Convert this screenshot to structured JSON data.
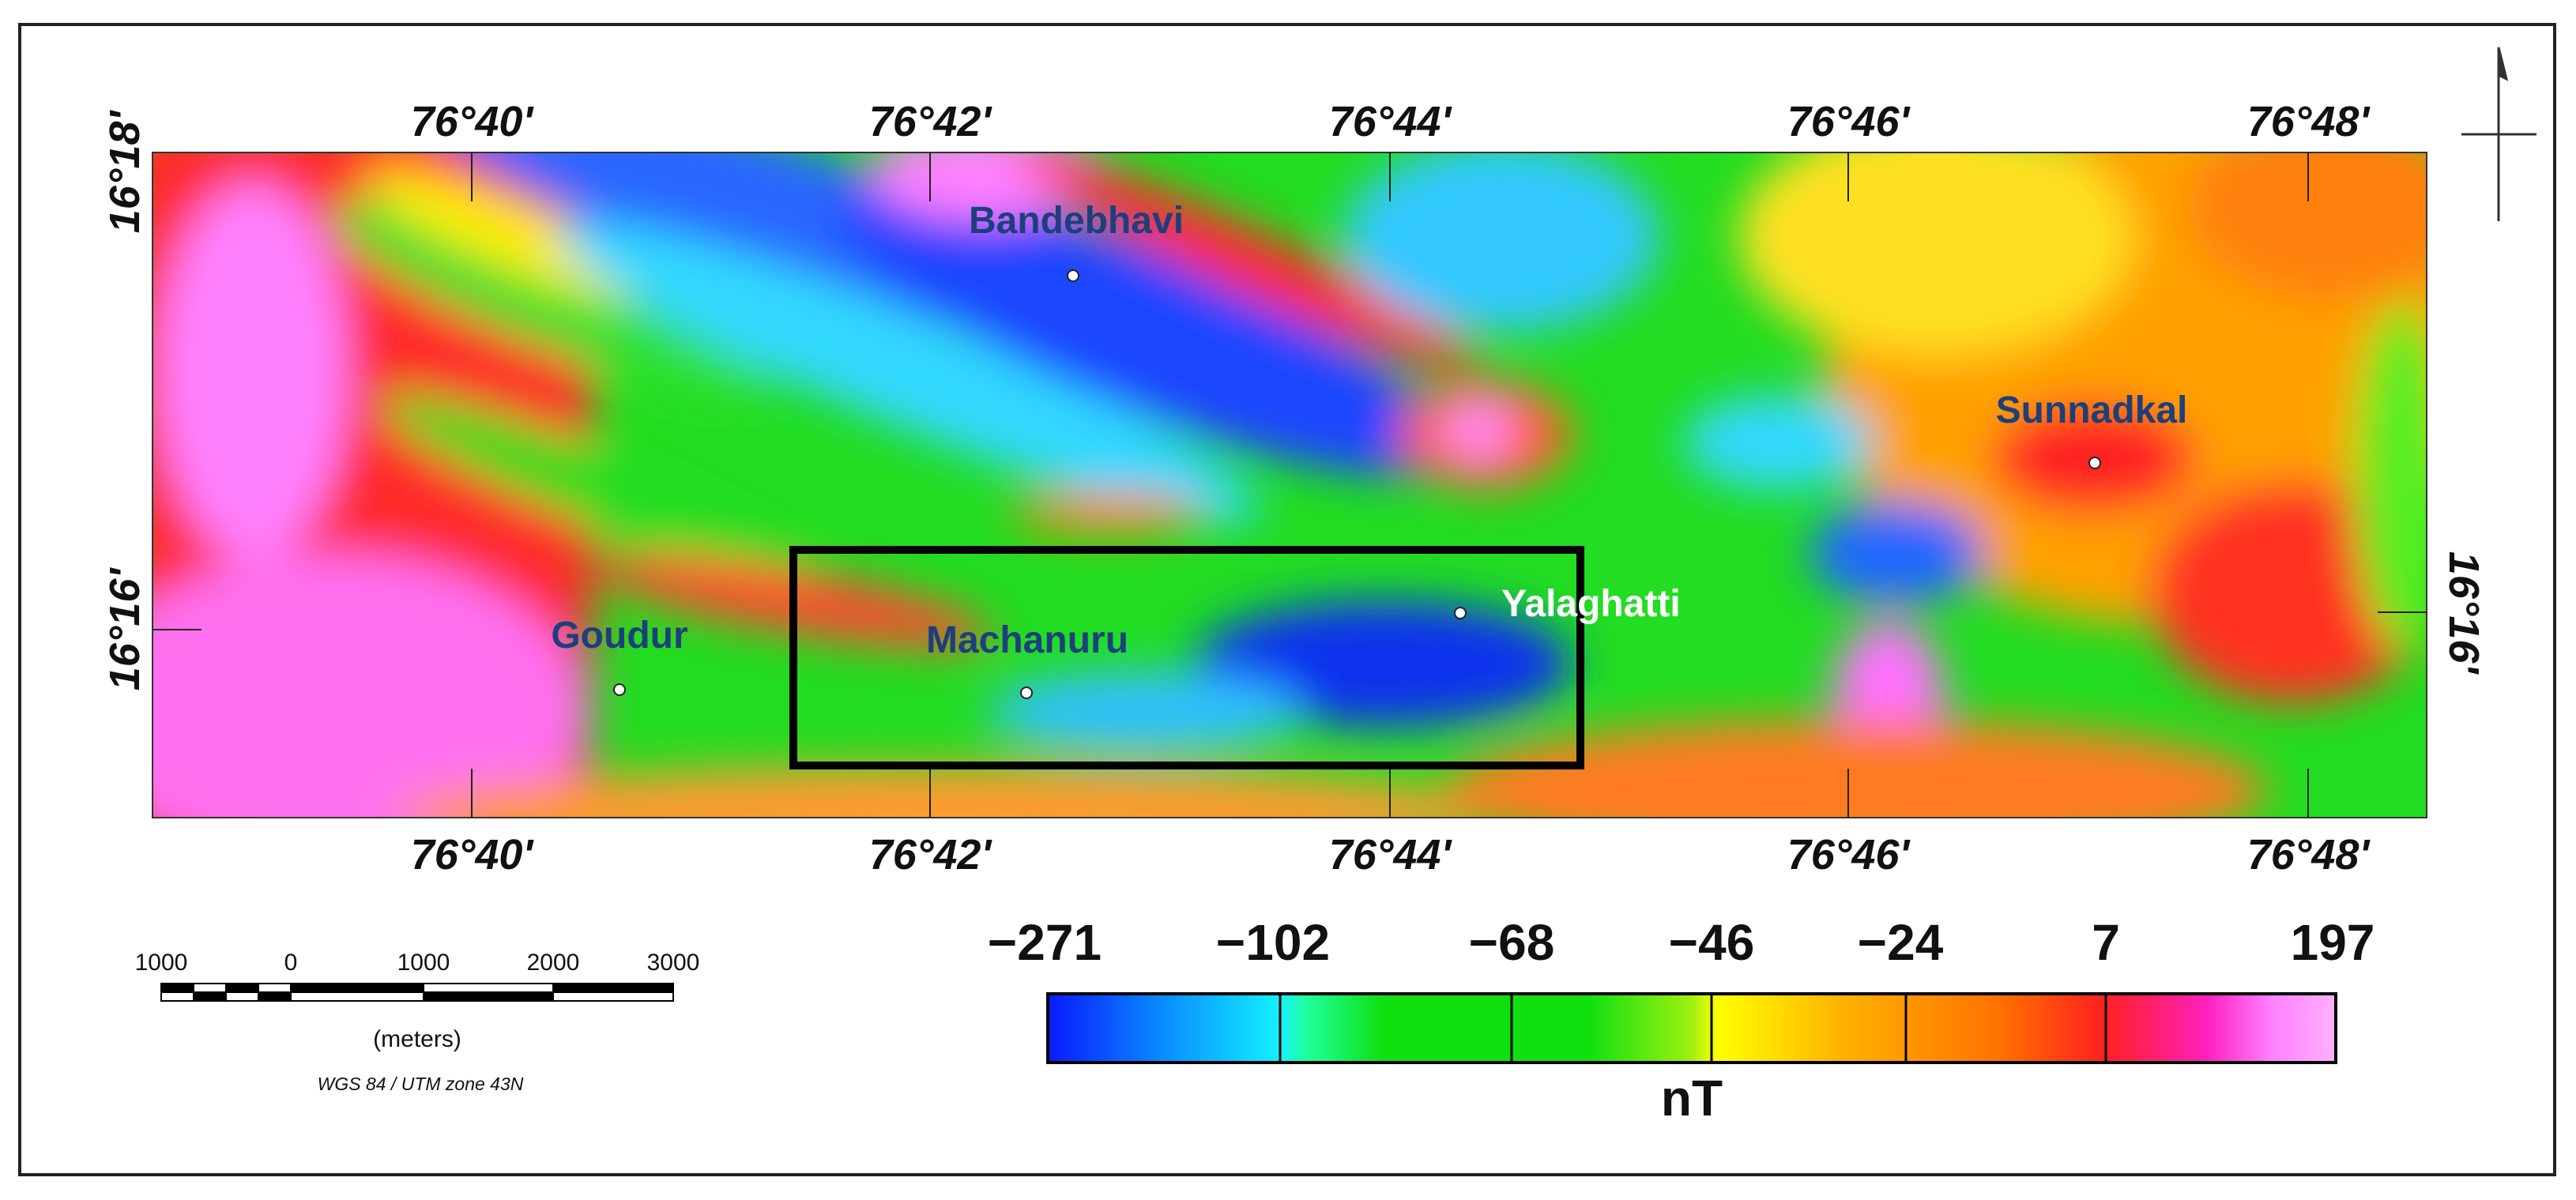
{
  "map": {
    "top_longitudes": [
      "76°40'",
      "76°42'",
      "76°44'",
      "76°46'",
      "76°48'"
    ],
    "bottom_longitudes": [
      "76°40'",
      "76°42'",
      "76°44'",
      "76°46'",
      "76°48'"
    ],
    "left_latitudes": [
      "16°18'",
      "16°16'"
    ],
    "right_latitudes": [
      "16°16'"
    ],
    "places": [
      "Bandebhavi",
      "Sunnadkal",
      "Yalaghatti",
      "Goudur",
      "Machanuru"
    ]
  },
  "colorbar": {
    "labels": [
      "−271",
      "−102",
      "−68",
      "−46",
      "−24",
      "7",
      "197"
    ],
    "unit": "nT"
  },
  "scale_bar": {
    "labels": [
      "1000",
      "0",
      "1000",
      "2000",
      "3000"
    ],
    "unit": "(meters)"
  },
  "projection": "WGS 84 / UTM zone 43N"
}
